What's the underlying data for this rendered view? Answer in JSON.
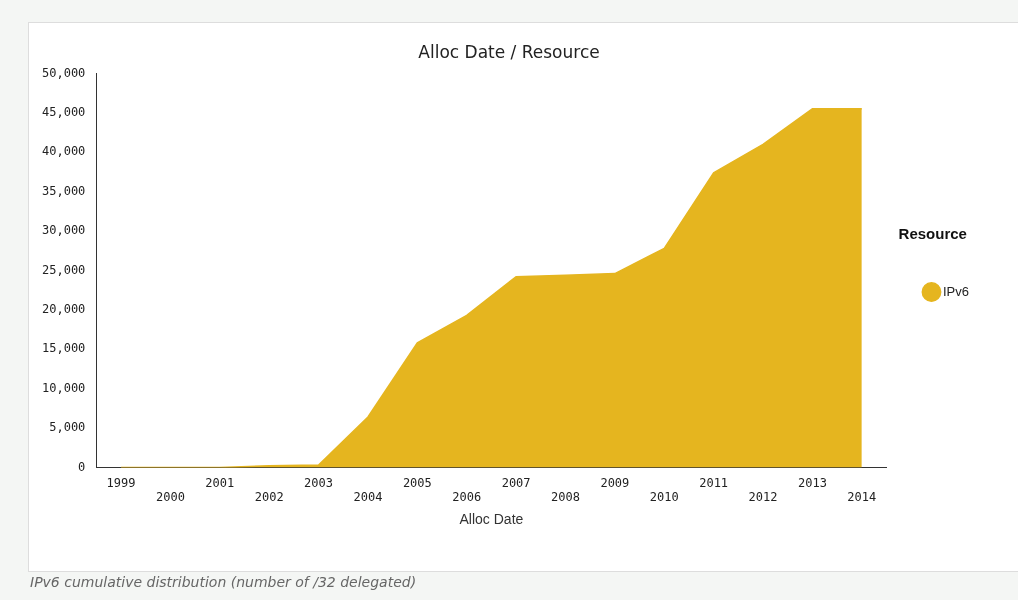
{
  "chart_data": {
    "type": "area",
    "title": "Alloc Date / Resource",
    "xlabel": "Alloc Date",
    "legend_title": "Resource",
    "legend": "right",
    "grid": false,
    "categories": [
      "1999",
      "2000",
      "2001",
      "2002",
      "2003",
      "2004",
      "2005",
      "2006",
      "2007",
      "2008",
      "2009",
      "2010",
      "2011",
      "2012",
      "2013",
      "2014"
    ],
    "series": [
      {
        "name": "IPv6",
        "color": "#e5b51f",
        "values": [
          0,
          0,
          0,
          200,
          300,
          6400,
          15800,
          19300,
          24200,
          24400,
          24600,
          27800,
          37400,
          41000,
          45500,
          45500
        ]
      }
    ],
    "ylim": [
      0,
      50000
    ],
    "yticks": [
      {
        "value": 0,
        "label": "0"
      },
      {
        "value": 5000,
        "label": "5,000"
      },
      {
        "value": 10000,
        "label": "10,000"
      },
      {
        "value": 15000,
        "label": "15,000"
      },
      {
        "value": 20000,
        "label": "20,000"
      },
      {
        "value": 25000,
        "label": "25,000"
      },
      {
        "value": 30000,
        "label": "30,000"
      },
      {
        "value": 35000,
        "label": "35,000"
      },
      {
        "value": 40000,
        "label": "40,000"
      },
      {
        "value": 45000,
        "label": "45,000"
      },
      {
        "value": 50000,
        "label": "50,000"
      }
    ],
    "annotations": [
      "IPv6 cumulative distribution (number of /32 delegated)"
    ]
  }
}
